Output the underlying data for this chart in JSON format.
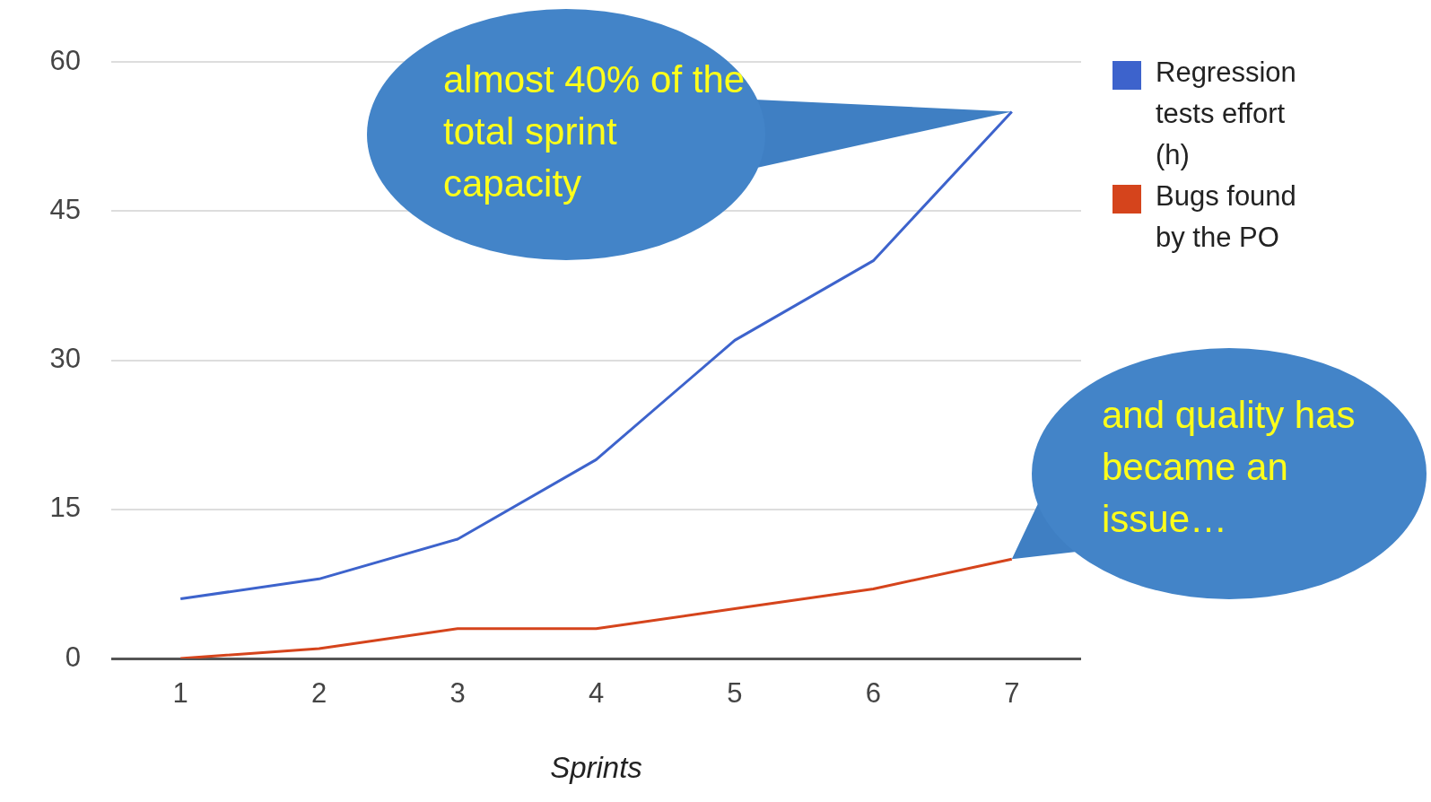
{
  "chart_data": {
    "type": "line",
    "xlabel": "Sprints",
    "categories": [
      "1",
      "2",
      "3",
      "4",
      "5",
      "6",
      "7"
    ],
    "series": [
      {
        "name": "Regression tests effort (h)",
        "color": "#3d63cc",
        "values": [
          6,
          8,
          12,
          20,
          32,
          40,
          55
        ]
      },
      {
        "name": "Bugs found by the PO",
        "color": "#d5441c",
        "values": [
          0,
          1,
          3,
          3,
          5,
          7,
          10
        ]
      }
    ],
    "ylim": [
      0,
      60
    ],
    "yticks": [
      0,
      15,
      30,
      45,
      60
    ],
    "grid": "y",
    "legend": "top right",
    "marker": "none",
    "annotations": [
      {
        "text": "almost 40% of the total sprint capacity",
        "x": "7",
        "y": 55
      },
      {
        "text": "and quality has became an issue…",
        "x": "7",
        "y": 10
      }
    ]
  }
}
